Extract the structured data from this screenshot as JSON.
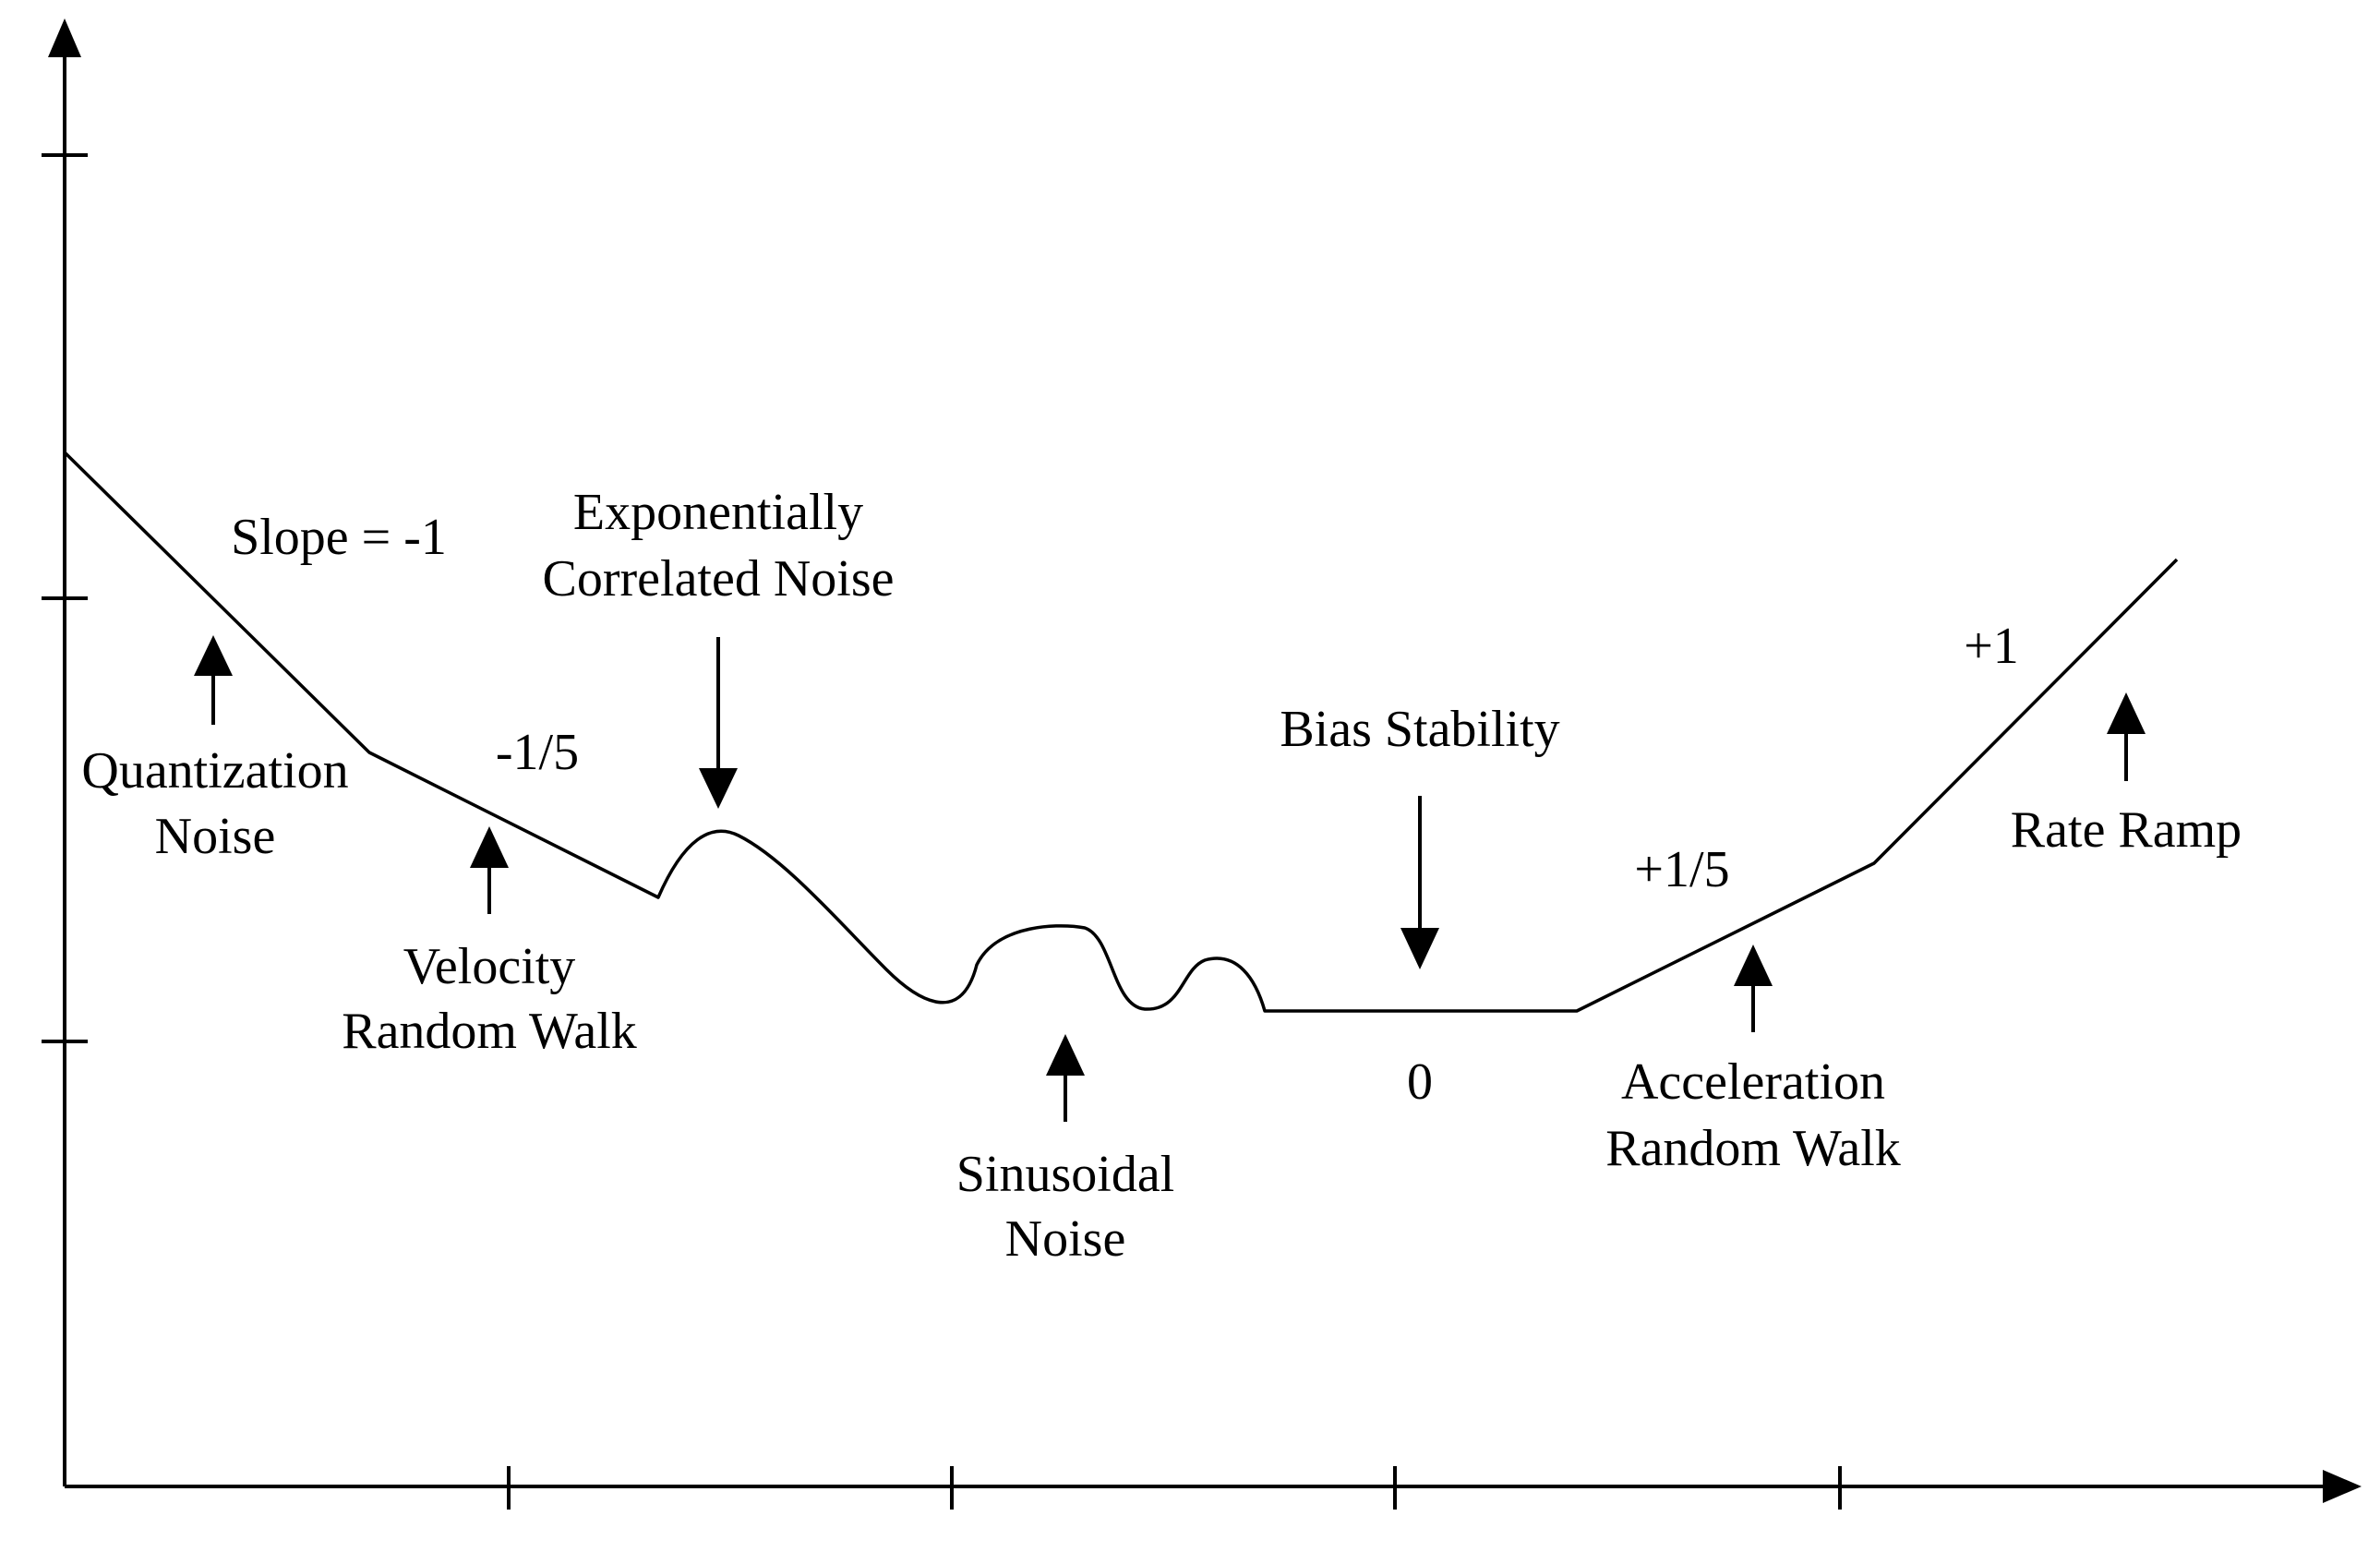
{
  "diagram": {
    "type": "allan-deviation-noise-profile",
    "line_color": "#000000",
    "background": "#ffffff",
    "axes": {
      "x_ticks": 4,
      "y_ticks": 3,
      "x_tick_labels": [],
      "y_tick_labels": []
    },
    "segments": [
      {
        "noise": "Quantization Noise",
        "slope_label": "Slope = -1"
      },
      {
        "noise": "Velocity Random Walk",
        "slope_label": "-1/5"
      },
      {
        "noise": "Exponentially Correlated Noise",
        "slope_label": ""
      },
      {
        "noise": "Sinusoidal Noise",
        "slope_label": ""
      },
      {
        "noise": "Bias Stability",
        "slope_label": "0"
      },
      {
        "noise": "Acceleration Random Walk",
        "slope_label": "+1/5"
      },
      {
        "noise": "Rate Ramp",
        "slope_label": "+1"
      }
    ],
    "labels": {
      "slope_minus_1": "Slope = -1",
      "quantization_line1": "Quantization",
      "quantization_line2": "Noise",
      "slope_minus_1_5": "-1/5",
      "velocity_line1": "Velocity",
      "velocity_line2": "Random Walk",
      "exponential_line1": "Exponentially",
      "exponential_line2": "Correlated Noise",
      "sinusoidal_line1": "Sinusoidal",
      "sinusoidal_line2": "Noise",
      "bias_stability": "Bias Stability",
      "slope_zero": "0",
      "slope_plus_1_5": "+1/5",
      "acceleration_line1": "Acceleration",
      "acceleration_line2": "Random Walk",
      "slope_plus_1": "+1",
      "rate_ramp": "Rate Ramp"
    }
  }
}
